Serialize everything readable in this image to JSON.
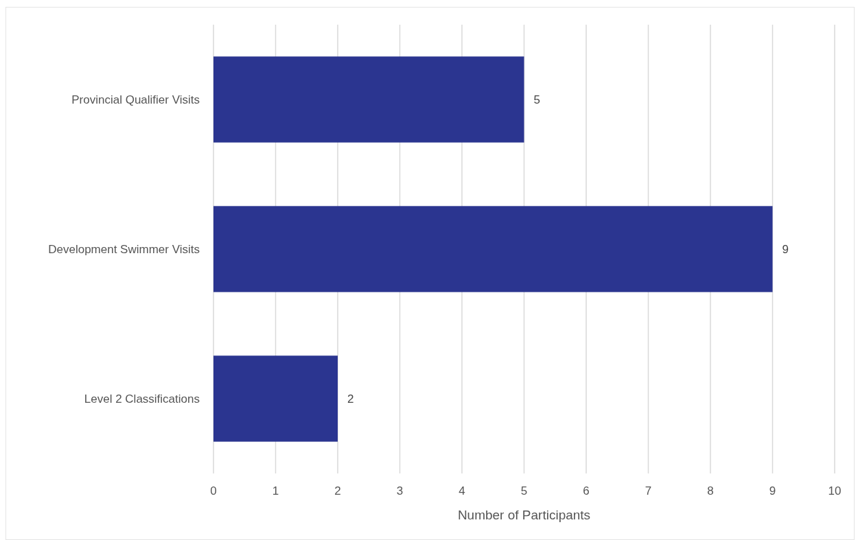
{
  "chart_data": {
    "type": "bar",
    "orientation": "horizontal",
    "xlabel": "Number of Participants",
    "categories": [
      "Provincial Qualifier Visits",
      "Development Swimmer Visits",
      "Level 2 Classifications"
    ],
    "values": [
      5,
      9,
      2
    ],
    "color": "#2b3590",
    "xlim": [
      0,
      10
    ],
    "xticks": [
      0,
      1,
      2,
      3,
      4,
      5,
      6,
      7,
      8,
      9,
      10
    ],
    "grid": "x",
    "data_labels": true
  }
}
